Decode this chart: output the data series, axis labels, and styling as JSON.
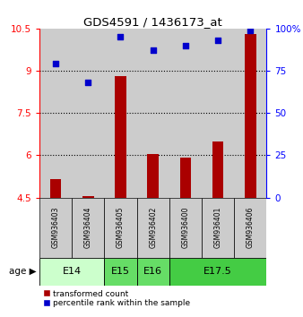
{
  "title": "GDS4591 / 1436173_at",
  "samples": [
    "GSM936403",
    "GSM936404",
    "GSM936405",
    "GSM936402",
    "GSM936400",
    "GSM936401",
    "GSM936406"
  ],
  "bar_values": [
    5.15,
    4.55,
    8.8,
    6.05,
    5.9,
    6.5,
    10.3
  ],
  "scatter_values": [
    79,
    68,
    95,
    87,
    90,
    93,
    99
  ],
  "ylim_left": [
    4.5,
    10.5
  ],
  "ylim_right": [
    0,
    100
  ],
  "yticks_left": [
    4.5,
    6.0,
    7.5,
    9.0,
    10.5
  ],
  "ytick_labels_left": [
    "4.5",
    "6",
    "7.5",
    "9",
    "10.5"
  ],
  "yticks_right": [
    0,
    25,
    50,
    75,
    100
  ],
  "ytick_labels_right": [
    "0",
    "25",
    "50",
    "75",
    "100%"
  ],
  "bar_color": "#aa0000",
  "scatter_color": "#0000cc",
  "bar_bottom": 4.5,
  "sample_bg_color": "#cccccc",
  "age_groups": [
    {
      "label": "E14",
      "start": 0,
      "end": 1,
      "color": "#ccffcc"
    },
    {
      "label": "E15",
      "start": 2,
      "end": 2,
      "color": "#66dd66"
    },
    {
      "label": "E16",
      "start": 3,
      "end": 3,
      "color": "#66dd66"
    },
    {
      "label": "E17.5",
      "start": 4,
      "end": 6,
      "color": "#44cc44"
    }
  ],
  "age_label": "age",
  "legend_bar_label": "transformed count",
  "legend_scatter_label": "percentile rank within the sample",
  "bg_color": "#ffffff",
  "dotted_gridlines": [
    6.0,
    7.5,
    9.0
  ]
}
